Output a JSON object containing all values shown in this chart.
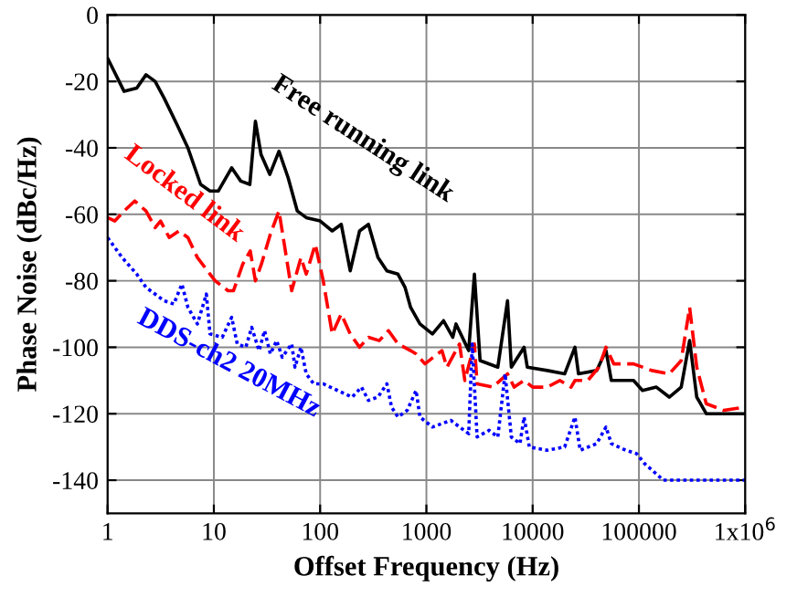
{
  "chart_data": {
    "type": "line",
    "xlabel": "Offset Frequency (Hz)",
    "ylabel": "Phase Noise (dBc/Hz)",
    "log": "x",
    "grid": true,
    "legend": false,
    "xlim": [
      1,
      1000000
    ],
    "xticks": [
      1,
      10,
      100,
      1000,
      10000,
      100000,
      {
        "value": 1000000,
        "label": "1x10$^{6}$"
      }
    ],
    "ylim": [
      -150,
      0
    ],
    "yticks": [
      0,
      -20,
      -40,
      -60,
      -80,
      -100,
      -120,
      -140
    ],
    "series": [
      {
        "name": "Free running link",
        "color": "#000000",
        "line_style": "solid",
        "x": [
          1,
          1.43,
          1.88,
          2.3,
          2.8,
          3.4,
          4.5,
          5.7,
          7.5,
          9.2,
          11,
          14.7,
          17.9,
          21.8,
          24.6,
          27.8,
          33.6,
          41,
          50,
          61,
          74,
          100,
          130,
          158,
          192,
          235,
          285,
          350,
          425,
          540,
          630,
          710,
          870,
          1140,
          1450,
          1770,
          1900,
          2500,
          2830,
          3200,
          4700,
          5800,
          6300,
          8300,
          8900,
          13700,
          20000,
          25000,
          27000,
          40000,
          49000,
          55000,
          89000,
          108000,
          146000,
          193000,
          250000,
          300000,
          350000,
          430000,
          1000000
        ],
        "values": [
          -13,
          -23,
          -22,
          -18,
          -20,
          -25,
          -33,
          -40,
          -51,
          -53,
          -53,
          -46,
          -50,
          -51,
          -32,
          -42,
          -48,
          -41,
          -49,
          -59,
          -61,
          -62,
          -65,
          -63,
          -77,
          -65,
          -63,
          -73,
          -77,
          -78,
          -82,
          -88,
          -93,
          -96,
          -92,
          -97,
          -93,
          -101,
          -78,
          -104,
          -106,
          -86,
          -106,
          -100,
          -106,
          -107,
          -108,
          -100,
          -108,
          -107,
          -101,
          -110,
          -110,
          -113,
          -112,
          -115,
          -112,
          -98,
          -115,
          -120,
          -120
        ]
      },
      {
        "name": "Locked link",
        "color": "#ff0000",
        "line_style": "dashed",
        "x": [
          1,
          1.17,
          1.43,
          1.8,
          2.3,
          2.8,
          3.15,
          3.8,
          4.7,
          5.7,
          7,
          9.2,
          10.3,
          13.6,
          15.3,
          18.7,
          22,
          24.6,
          28,
          34,
          41,
          46,
          54,
          66,
          74,
          90,
          107,
          130,
          158,
          192,
          235,
          285,
          360,
          440,
          540,
          710,
          800,
          970,
          1400,
          1560,
          2050,
          2300,
          2830,
          3000,
          4200,
          5800,
          6700,
          8300,
          10000,
          13700,
          18000,
          23000,
          25000,
          33000,
          42000,
          49000,
          58000,
          89000,
          132000,
          193000,
          250000,
          300000,
          350000,
          430000,
          630000,
          1000000
        ],
        "values": [
          -61,
          -62,
          -59,
          -56,
          -59,
          -64,
          -62,
          -67,
          -65,
          -67,
          -73,
          -78,
          -80,
          -83,
          -83,
          -75,
          -71,
          -80,
          -75,
          -66,
          -59,
          -69,
          -83,
          -73,
          -78,
          -69,
          -80,
          -96,
          -90,
          -96,
          -100,
          -97,
          -98,
          -95,
          -99,
          -101,
          -102,
          -105,
          -101,
          -106,
          -99,
          -110,
          -99,
          -111,
          -112,
          -108,
          -112,
          -110,
          -112,
          -112,
          -110,
          -112,
          -110,
          -110,
          -106,
          -100,
          -105,
          -105,
          -107,
          -108,
          -104,
          -88,
          -106,
          -117,
          -119,
          -118
        ]
      },
      {
        "name": "DDS-ch2 20MHz",
        "color": "#0000ff",
        "line_style": "dotted",
        "x": [
          1,
          1.37,
          1.88,
          2.3,
          3.4,
          4.2,
          5,
          5.7,
          7,
          8.5,
          9.2,
          12,
          14.7,
          16.6,
          20,
          22.7,
          26.6,
          30,
          34,
          39,
          44,
          54,
          58,
          66,
          74,
          87,
          107,
          146,
          200,
          245,
          285,
          350,
          425,
          470,
          540,
          660,
          800,
          870,
          1140,
          1700,
          2050,
          2500,
          2700,
          3000,
          3900,
          4700,
          5500,
          6300,
          7600,
          8300,
          9300,
          13700,
          20000,
          25000,
          28000,
          40000,
          49000,
          55000,
          75000,
          95000,
          113000,
          170000,
          265000,
          1000000
        ],
        "values": [
          -67,
          -73,
          -78,
          -82,
          -86,
          -87,
          -81,
          -88,
          -93,
          -84,
          -96,
          -97,
          -91,
          -99,
          -100,
          -94,
          -101,
          -95,
          -102,
          -98,
          -103,
          -99,
          -106,
          -100,
          -108,
          -111,
          -111,
          -113,
          -115,
          -112,
          -116,
          -115,
          -111,
          -118,
          -121,
          -119,
          -113,
          -121,
          -124,
          -122,
          -124,
          -126,
          -99,
          -127,
          -125,
          -127,
          -108,
          -127,
          -129,
          -121,
          -130,
          -131,
          -130,
          -121,
          -131,
          -129,
          -124,
          -129,
          -131,
          -132,
          -135,
          -140,
          -140,
          -140
        ]
      }
    ]
  }
}
